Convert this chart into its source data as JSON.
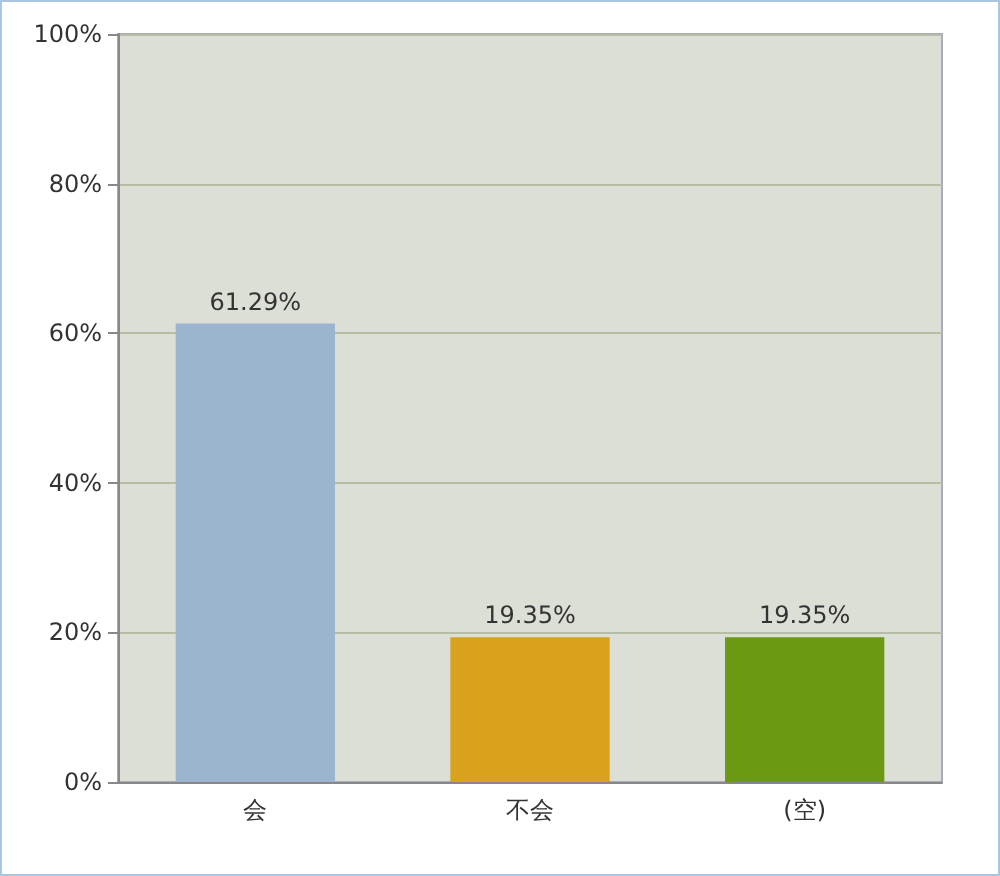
{
  "chart_data": {
    "type": "bar",
    "categories": [
      "会",
      "不会",
      "(空)"
    ],
    "values": [
      61.29,
      19.35,
      19.35
    ],
    "colors": [
      "#9bb5cf",
      "#d9a21e",
      "#6b9a12"
    ],
    "value_labels": [
      "61.29%",
      "19.35%",
      "19.35%"
    ],
    "ylim": [
      0,
      100
    ],
    "yticks": [
      {
        "value": 0,
        "label": "0%"
      },
      {
        "value": 20,
        "label": "20%"
      },
      {
        "value": 40,
        "label": "40%"
      },
      {
        "value": 60,
        "label": "60%"
      },
      {
        "value": 80,
        "label": "80%"
      },
      {
        "value": 100,
        "label": "100%"
      }
    ],
    "grid": "y"
  }
}
